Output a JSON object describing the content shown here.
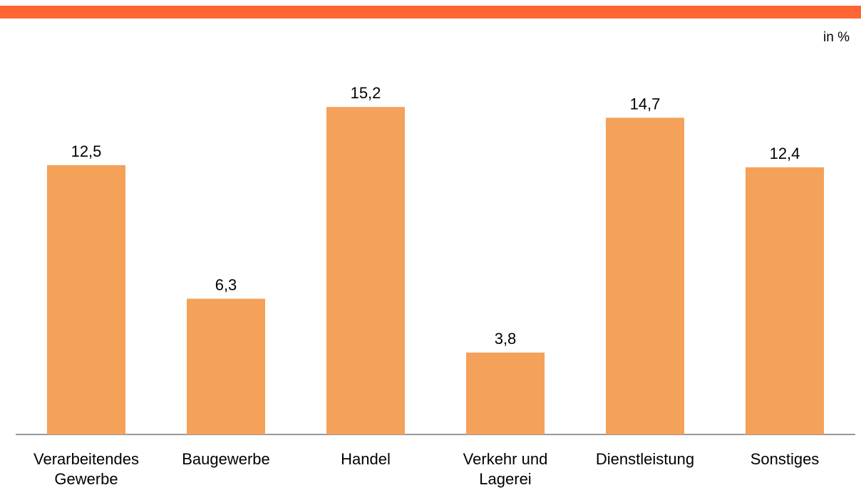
{
  "chart_data": {
    "type": "bar",
    "unit_label": "in %",
    "categories": [
      [
        "Verarbeitendes",
        "Gewerbe"
      ],
      [
        "Baugewerbe"
      ],
      [
        "Handel"
      ],
      [
        "Verkehr und",
        "Lagerei"
      ],
      [
        "Dienstleistung"
      ],
      [
        "Sonstiges"
      ]
    ],
    "values": [
      12.5,
      6.3,
      15.2,
      3.8,
      14.7,
      12.4
    ],
    "value_labels": [
      "12,5",
      "6,3",
      "15,2",
      "3,8",
      "14,7",
      "12,4"
    ],
    "color": "#f4a15a",
    "ylim": [
      0,
      16
    ]
  }
}
